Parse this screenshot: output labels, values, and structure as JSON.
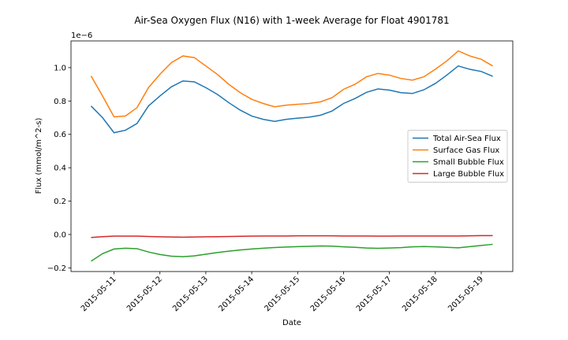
{
  "chart_data": {
    "type": "line",
    "title": "Air-Sea Oxygen Flux (N16) with 1-week Average for Float 4901781",
    "xlabel": "Date",
    "ylabel": "Flux (mmol/m^2-s)",
    "y_offset_text": "1e−6",
    "x": [
      10.5,
      10.75,
      11,
      11.25,
      11.5,
      11.75,
      12,
      12.25,
      12.5,
      12.75,
      13,
      13.25,
      13.5,
      13.75,
      14,
      14.25,
      14.5,
      14.75,
      15,
      15.25,
      15.5,
      15.75,
      16,
      16.25,
      16.5,
      16.75,
      17,
      17.25,
      17.5,
      17.75,
      18,
      18.25,
      18.5,
      18.75,
      19,
      19.25
    ],
    "series": [
      {
        "name": "Total Air-Sea Flux",
        "color": "#1f77b4",
        "values": [
          0.77,
          0.7,
          0.61,
          0.625,
          0.665,
          0.77,
          0.83,
          0.885,
          0.92,
          0.915,
          0.88,
          0.84,
          0.79,
          0.745,
          0.71,
          0.69,
          0.678,
          0.69,
          0.697,
          0.703,
          0.715,
          0.74,
          0.785,
          0.815,
          0.852,
          0.872,
          0.865,
          0.85,
          0.845,
          0.867,
          0.905,
          0.955,
          1.01,
          0.99,
          0.977,
          0.948
        ]
      },
      {
        "name": "Surface Gas Flux",
        "color": "#ff7f0e",
        "values": [
          0.95,
          0.83,
          0.705,
          0.71,
          0.76,
          0.88,
          0.96,
          1.03,
          1.07,
          1.06,
          1.01,
          0.96,
          0.9,
          0.85,
          0.81,
          0.785,
          0.765,
          0.775,
          0.78,
          0.785,
          0.795,
          0.82,
          0.87,
          0.9,
          0.945,
          0.965,
          0.955,
          0.935,
          0.925,
          0.945,
          0.99,
          1.04,
          1.1,
          1.07,
          1.05,
          1.01
        ]
      },
      {
        "name": "Small Bubble Flux",
        "color": "#2ca02c",
        "values": [
          -0.16,
          -0.115,
          -0.087,
          -0.082,
          -0.085,
          -0.105,
          -0.12,
          -0.13,
          -0.133,
          -0.128,
          -0.118,
          -0.108,
          -0.1,
          -0.093,
          -0.087,
          -0.082,
          -0.078,
          -0.075,
          -0.073,
          -0.071,
          -0.069,
          -0.07,
          -0.074,
          -0.077,
          -0.081,
          -0.083,
          -0.081,
          -0.079,
          -0.074,
          -0.072,
          -0.074,
          -0.077,
          -0.08,
          -0.073,
          -0.066,
          -0.059
        ]
      },
      {
        "name": "Large Bubble Flux",
        "color": "#d62728",
        "values": [
          -0.018,
          -0.013,
          -0.01,
          -0.01,
          -0.01,
          -0.012,
          -0.014,
          -0.015,
          -0.016,
          -0.015,
          -0.014,
          -0.013,
          -0.012,
          -0.011,
          -0.01,
          -0.009,
          -0.009,
          -0.009,
          -0.008,
          -0.008,
          -0.008,
          -0.008,
          -0.009,
          -0.009,
          -0.009,
          -0.01,
          -0.01,
          -0.009,
          -0.009,
          -0.009,
          -0.009,
          -0.009,
          -0.009,
          -0.008,
          -0.007,
          -0.007
        ]
      }
    ],
    "xlim": [
      10.0625,
      19.6875
    ],
    "xticks": [
      {
        "value": 11,
        "label": "2015-05-11"
      },
      {
        "value": 12,
        "label": "2015-05-12"
      },
      {
        "value": 13,
        "label": "2015-05-13"
      },
      {
        "value": 14,
        "label": "2015-05-14"
      },
      {
        "value": 15,
        "label": "2015-05-15"
      },
      {
        "value": 16,
        "label": "2015-05-16"
      },
      {
        "value": 17,
        "label": "2015-05-17"
      },
      {
        "value": 18,
        "label": "2015-05-18"
      },
      {
        "value": 19,
        "label": "2015-05-19"
      }
    ],
    "ylim": [
      -0.222,
      1.16
    ],
    "yticks": [
      {
        "value": -0.2,
        "label": "−0.2"
      },
      {
        "value": 0,
        "label": "0.0"
      },
      {
        "value": 0.2,
        "label": "0.2"
      },
      {
        "value": 0.4,
        "label": "0.4"
      },
      {
        "value": 0.6,
        "label": "0.6"
      },
      {
        "value": 0.8,
        "label": "0.8"
      },
      {
        "value": 1,
        "label": "1.0"
      }
    ],
    "grid": false,
    "legend": "center right"
  }
}
